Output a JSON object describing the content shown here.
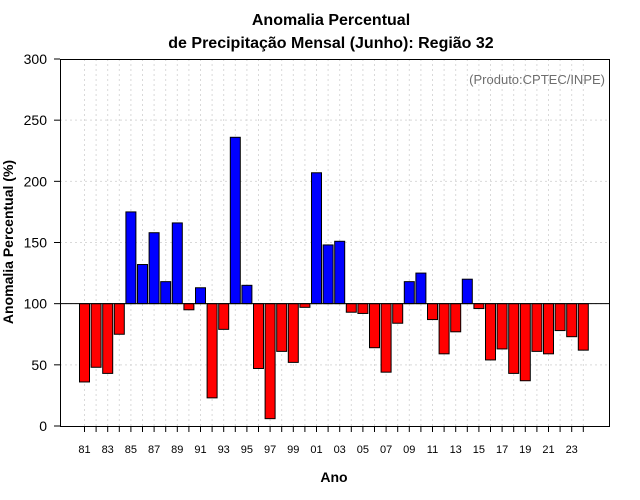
{
  "chart_data": {
    "type": "bar",
    "title_line1": "Anomalia Percentual",
    "title_line2": "de Precipitação Mensal (Junho): Região 32",
    "xlabel": "Ano",
    "ylabel": "Anomalia Percentual (%)",
    "credit": "(Produto:CPTEC/INPE)",
    "baseline": 100,
    "ylim": [
      0,
      300
    ],
    "yticks": [
      0,
      50,
      100,
      150,
      200,
      250,
      300
    ],
    "xtick_labels": [
      "81",
      "83",
      "85",
      "87",
      "89",
      "91",
      "93",
      "95",
      "97",
      "99",
      "01",
      "03",
      "05",
      "07",
      "09",
      "11",
      "13",
      "15",
      "17",
      "19",
      "21",
      "23"
    ],
    "above_color": "#0000ff",
    "below_color": "#ff0000",
    "categories": [
      "81",
      "82",
      "83",
      "84",
      "85",
      "86",
      "87",
      "88",
      "89",
      "90",
      "91",
      "92",
      "93",
      "94",
      "95",
      "96",
      "97",
      "98",
      "99",
      "00",
      "01",
      "02",
      "03",
      "04",
      "05",
      "06",
      "07",
      "08",
      "09",
      "10",
      "11",
      "12",
      "13",
      "14",
      "15",
      "16",
      "17",
      "18",
      "19",
      "20",
      "21",
      "22",
      "23",
      "24"
    ],
    "values": [
      36,
      48,
      43,
      75,
      175,
      132,
      158,
      118,
      166,
      95,
      113,
      23,
      79,
      236,
      115,
      47,
      6,
      61,
      52,
      97,
      207,
      148,
      151,
      93,
      92,
      64,
      44,
      84,
      118,
      125,
      87,
      59,
      77,
      120,
      96,
      54,
      63,
      43,
      37,
      61,
      59,
      78,
      73,
      62
    ]
  }
}
